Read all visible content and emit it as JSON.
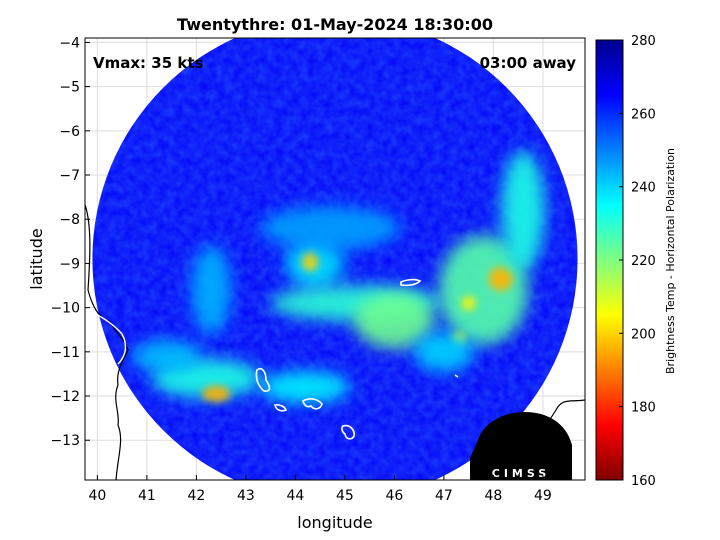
{
  "chart_data": {
    "type": "heatmap",
    "title": "Twentythre: 01-May-2024 18:30:00",
    "annotations": {
      "vmax": "Vmax: 35 kts",
      "time_away": "03:00 away"
    },
    "xlabel": "longitude",
    "ylabel": "latitude",
    "xlim": [
      39.75,
      49.85
    ],
    "ylim": [
      -13.9,
      -3.9
    ],
    "x_ticks": [
      40,
      41,
      42,
      43,
      44,
      45,
      46,
      47,
      48,
      49
    ],
    "y_ticks": [
      -4,
      -5,
      -6,
      -7,
      -8,
      -9,
      -10,
      -11,
      -12,
      -13
    ],
    "grid": true,
    "colorbar": {
      "label": "Brightness Temp - Horizontal Polarization",
      "range": [
        160,
        280
      ],
      "ticks": [
        280,
        260,
        240,
        220,
        200,
        180,
        160
      ],
      "colormap": "jet"
    },
    "swath": {
      "center": [
        44.8,
        -8.9
      ],
      "radius_deg": 4.9
    },
    "background_value": 266,
    "features": [
      {
        "name": "eye",
        "lon": 44.75,
        "lat": -9.0,
        "value": 268
      },
      {
        "name": "inner-eyewall",
        "lon": 44.4,
        "lat": -9.0,
        "value": 238
      },
      {
        "name": "eyewall-hotspot",
        "lon": 44.3,
        "lat": -8.95,
        "value": 200
      },
      {
        "name": "northern-band",
        "lon": 44.7,
        "lat": -8.2,
        "value": 246
      },
      {
        "name": "southern-arc",
        "lon": 45.2,
        "lat": -9.9,
        "value": 230
      },
      {
        "name": "central-band",
        "lon": 46.0,
        "lat": -10.3,
        "value": 222
      },
      {
        "name": "eastern-band",
        "lon": 47.8,
        "lat": -9.6,
        "value": 225
      },
      {
        "name": "east-hotspot",
        "lon": 48.15,
        "lat": -9.35,
        "value": 196
      },
      {
        "name": "east-spot-2",
        "lon": 47.5,
        "lat": -9.9,
        "value": 204
      },
      {
        "name": "east-spot-3",
        "lon": 47.3,
        "lat": -10.7,
        "value": 206
      },
      {
        "name": "northeast-band",
        "lon": 48.6,
        "lat": -7.8,
        "value": 232
      },
      {
        "name": "southeast-band",
        "lon": 47.0,
        "lat": -11.0,
        "value": 240
      },
      {
        "name": "southwest-band",
        "lon": 42.2,
        "lat": -11.6,
        "value": 232
      },
      {
        "name": "southwest-hotspot",
        "lon": 42.4,
        "lat": -11.95,
        "value": 196
      },
      {
        "name": "west-band",
        "lon": 41.4,
        "lat": -11.1,
        "value": 242
      },
      {
        "name": "south-band",
        "lon": 44.2,
        "lat": -11.8,
        "value": 236
      },
      {
        "name": "west-arc",
        "lon": 42.3,
        "lat": -9.6,
        "value": 244
      }
    ],
    "logo": "CIMSS"
  }
}
